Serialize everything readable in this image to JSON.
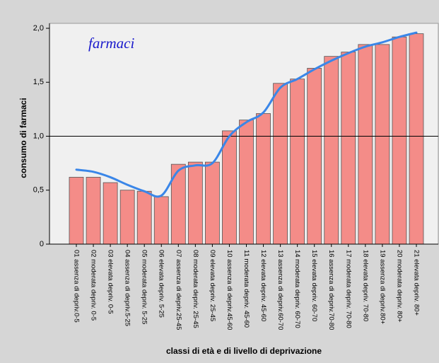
{
  "chart_data": {
    "type": "bar",
    "annotation": "farmaci",
    "x_label": "classi di età e di livello di deprivazione",
    "y_label": "consumo di farmaci",
    "categories": [
      "01 assenza di depriv.0-5",
      "02 moderata depriv. 0-5",
      "03 elevata depriv. 0-5",
      "04 assenza di depriv.5-25",
      "05 moderata depriv. 5-25",
      "06 elevata depriv. 5-25",
      "07 assenza di depriv.25-45",
      "08 moderata depriv. 25-45",
      "09 elevata depriv. 25-45",
      "10 assenza di depriv.45-60",
      "11 moderata depriv. 45-60",
      "12 elevata depriv. 45-60",
      "13 assenza di depriv.60-70",
      "14 moderata depriv. 60-70",
      "15 elevata depriv. 60-70",
      "16 assenza di depriv.70-80",
      "17 moderata depriv. 70-80",
      "18 elevata depriv. 70-80",
      "19 assenza di depriv.80+",
      "20 moderata depriv. 80+",
      "21 elevata depriv. 80+"
    ],
    "values": [
      0.62,
      0.62,
      0.57,
      0.5,
      0.49,
      0.44,
      0.74,
      0.76,
      0.76,
      1.05,
      1.15,
      1.21,
      1.49,
      1.53,
      1.63,
      1.74,
      1.78,
      1.85,
      1.85,
      1.92,
      1.95
    ],
    "color": "#f48c88",
    "curve": {
      "color": "#3a86e8",
      "values": [
        0.69,
        0.67,
        0.62,
        0.55,
        0.49,
        0.45,
        0.68,
        0.73,
        0.75,
        1.0,
        1.13,
        1.22,
        1.45,
        1.53,
        1.62,
        1.7,
        1.77,
        1.83,
        1.87,
        1.92,
        1.96
      ]
    },
    "reference_line": 1.0,
    "ylim": [
      0,
      2.0
    ],
    "yticks": [
      0,
      {
        "value": 0.5,
        "label": "0,5"
      },
      {
        "value": 1.0,
        "label": "1,0"
      },
      {
        "value": 1.5,
        "label": "1,5"
      },
      {
        "value": 2.0,
        "label": "2,0"
      }
    ]
  }
}
